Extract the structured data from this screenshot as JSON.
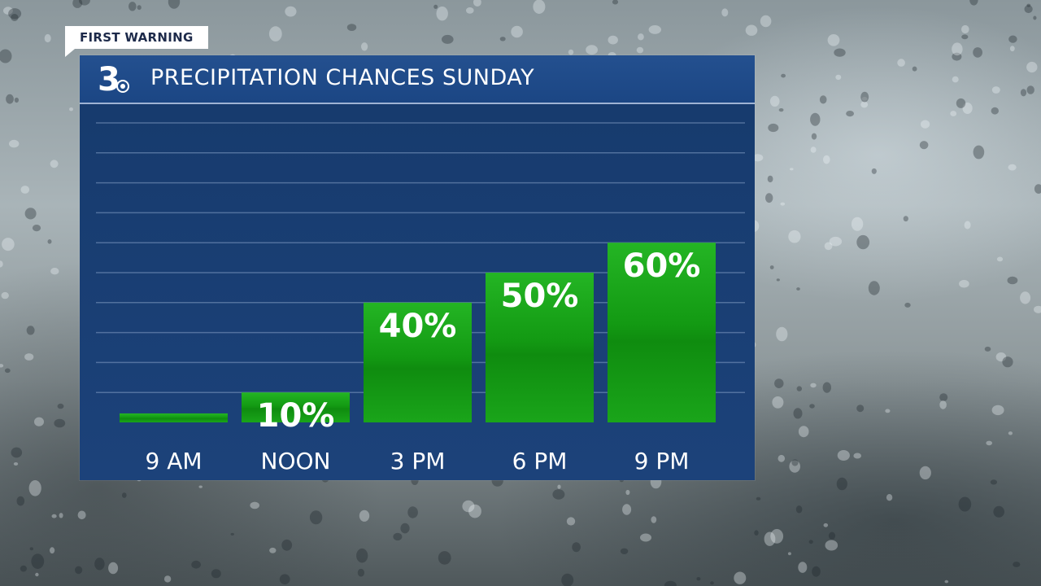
{
  "badge": {
    "text": "FIRST WARNING"
  },
  "header": {
    "logo_text": "3",
    "title": "PRECIPITATION CHANCES SUNDAY"
  },
  "colors": {
    "panel": "#1c427a",
    "header": "#24508f",
    "bar": "#1aa51a",
    "text": "#ffffff"
  },
  "chart_data": {
    "type": "bar",
    "title": "PRECIPITATION CHANCES SUNDAY",
    "categories": [
      "9 AM",
      "NOON",
      "3 PM",
      "6 PM",
      "9 PM"
    ],
    "values": [
      3,
      10,
      40,
      50,
      60
    ],
    "data_labels": [
      "",
      "10%",
      "40%",
      "50%",
      "60%"
    ],
    "ylim": [
      0,
      100
    ],
    "grid": true,
    "legend": "none"
  }
}
